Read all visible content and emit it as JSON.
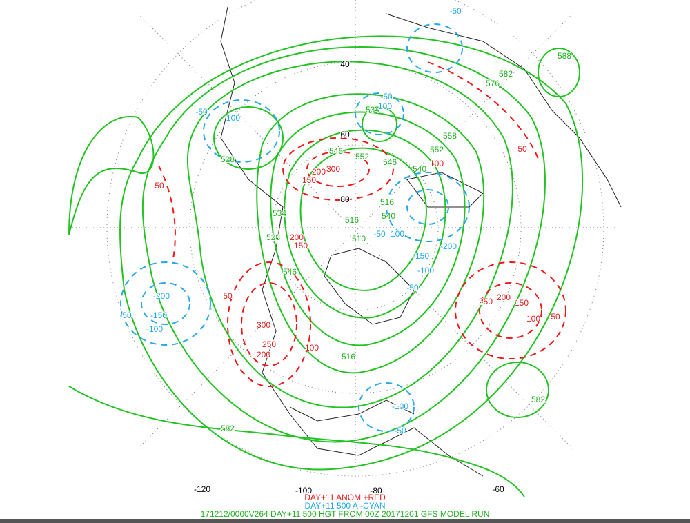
{
  "caption": [
    "DAY+11 ANOM +RED",
    "DAY+11 500 A.-CYAN",
    "171212/0000V264 DAY+11 500 HGT FROM 00Z 20171201 GFS MODEL RUN"
  ],
  "grid_labels": [
    "40",
    "60",
    "80",
    "-120",
    "-100",
    "-80",
    "-60"
  ],
  "height_labels": [
    "582",
    "582",
    "588",
    "582",
    "576",
    "558",
    "552",
    "546",
    "552",
    "546",
    "540",
    "534",
    "528",
    "528",
    "534",
    "516",
    "510",
    "516",
    "540",
    "546",
    "516"
  ],
  "anomaly_positive_labels": [
    "50",
    "50",
    "100",
    "150",
    "200",
    "300",
    "150",
    "200",
    "50",
    "300",
    "250",
    "200",
    "100",
    "250",
    "200",
    "150",
    "100",
    "50"
  ],
  "anomaly_negative_labels": [
    "-50",
    "-50",
    "100",
    "-50",
    "100",
    "-50",
    "100",
    "-200",
    "-150",
    "-100",
    "-50",
    "-200",
    "-150",
    "-100",
    "-50",
    "-100",
    "-50"
  ]
}
